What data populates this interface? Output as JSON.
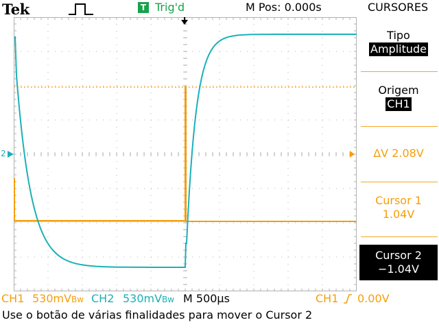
{
  "header": {
    "brand": "Tek",
    "pulse_icon": "single-pulse-icon",
    "trigger_state_icon_letter": "T",
    "trigger_state": "Trig'd",
    "horizontal_position": "M Pos: 0.000s",
    "menu_title": "CURSORES"
  },
  "side_menu": {
    "type_label": "Tipo",
    "type_value": "Amplitude",
    "origin_label": "Origem",
    "origin_value": "CH1",
    "delta_value": "ΔV 2.08V",
    "cursor1_label": "Cursor 1",
    "cursor1_value": "1.04V",
    "cursor2_label": "Cursor 2",
    "cursor2_value": "−1.04V"
  },
  "status_bar": {
    "ch1_label": "CH1",
    "ch1_scale": "530mV",
    "ch1_bw": "Bᴡ",
    "ch2_label": "CH2",
    "ch2_scale": "530mV",
    "ch2_bw": "Bᴡ",
    "timebase": "M 500µs",
    "trigger_source": "CH1",
    "trigger_level": "0.00V"
  },
  "message": "Use o botão de várias finalidades para mover o Cursor 2",
  "channel_markers": {
    "ch2_marker": "2"
  },
  "colors": {
    "ch1": "#f59e0b",
    "ch2": "#1ab0b8",
    "trigger": "#16a34a",
    "cursor": "#f5a623",
    "grid": "#b0b0b0"
  }
}
